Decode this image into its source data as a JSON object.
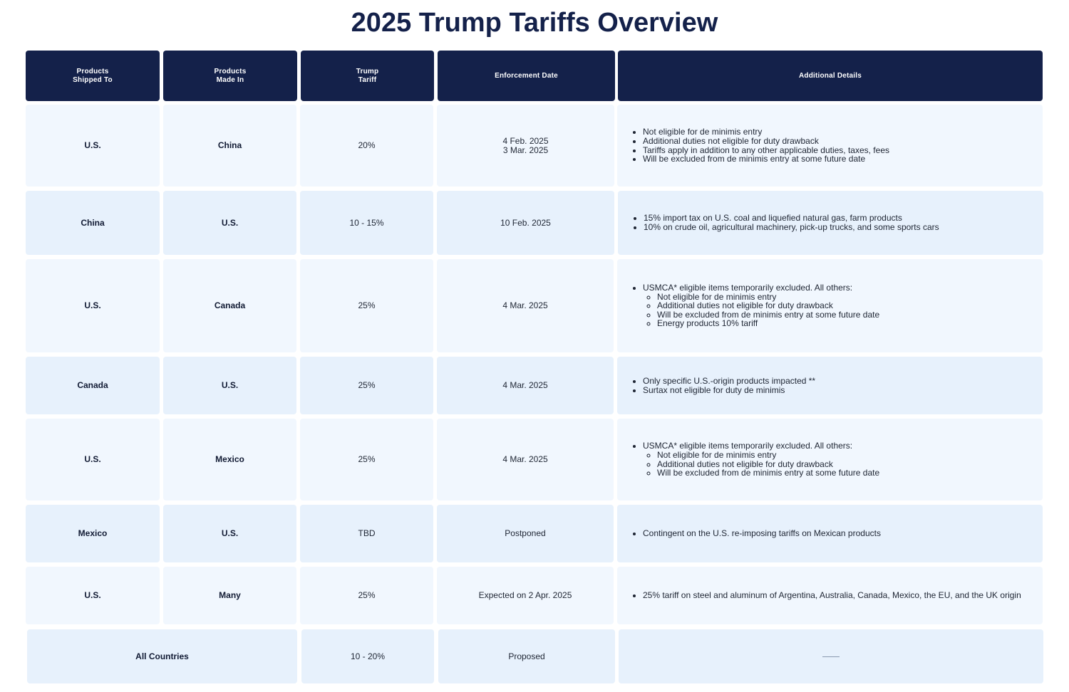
{
  "title": "2025 Trump Tariffs Overview",
  "colors": {
    "header_bg": "#14214a",
    "row_odd_bg": "#f1f7fe",
    "row_even_bg": "#e7f1fc",
    "title_color": "#14214a"
  },
  "headers": {
    "shipped_to": "Products\nShipped To",
    "made_in": "Products\nMade In",
    "tariff": "Trump\nTariff",
    "date": "Enforcement Date",
    "details": "Additional Details"
  },
  "rows": [
    {
      "shipped_to": "U.S.",
      "made_in": "China",
      "tariff": "20%",
      "date": "4 Feb. 2025\n3 Mar. 2025",
      "details": [
        "Not eligible for de minimis entry",
        "Additional duties not eligible for duty drawback",
        "Tariffs apply in addition to any other applicable duties, taxes, fees",
        "Will be excluded from de minimis entry at some future date"
      ]
    },
    {
      "shipped_to": "China",
      "made_in": "U.S.",
      "tariff": "10 - 15%",
      "date": "10 Feb. 2025",
      "details": [
        "15% import tax on U.S. coal and liquefied natural gas, farm products",
        "10% on crude oil, agricultural machinery, pick-up trucks, and some sports cars"
      ]
    },
    {
      "shipped_to": "U.S.",
      "made_in": "Canada",
      "tariff": "25%",
      "date": "4 Mar. 2025",
      "details_intro": "USMCA* eligible items temporarily excluded. All others:",
      "details": [
        "Not eligible for de minimis entry",
        "Additional duties not eligible for duty drawback",
        "Will be excluded from de minimis entry at some future date",
        "Energy products 10% tariff"
      ]
    },
    {
      "shipped_to": "Canada",
      "made_in": "U.S.",
      "tariff": "25%",
      "date": "4 Mar. 2025",
      "details": [
        "Only specific U.S.-origin products impacted **",
        "Surtax not eligible for duty de minimis"
      ]
    },
    {
      "shipped_to": "U.S.",
      "made_in": "Mexico",
      "tariff": "25%",
      "date": "4 Mar. 2025",
      "details_intro": "USMCA* eligible items temporarily excluded. All others:",
      "details": [
        "Not eligible for de minimis entry",
        "Additional duties not eligible for duty drawback",
        "Will be excluded from de minimis entry at some future date"
      ]
    },
    {
      "shipped_to": "Mexico",
      "made_in": "U.S.",
      "tariff": "TBD",
      "date": "Postponed",
      "details": [
        "Contingent on the U.S. re-imposing tariffs on Mexican products"
      ]
    },
    {
      "shipped_to": "U.S.",
      "made_in": "Many",
      "tariff": "25%",
      "date": "Expected on 2 Apr. 2025",
      "details": [
        "25% tariff on steel and aluminum of Argentina, Australia, Canada, Mexico, the EU, and the UK origin"
      ]
    },
    {
      "shipped_to_made_in": "All Countries",
      "tariff": "10 - 20%",
      "date": "Proposed",
      "details": []
    }
  ]
}
